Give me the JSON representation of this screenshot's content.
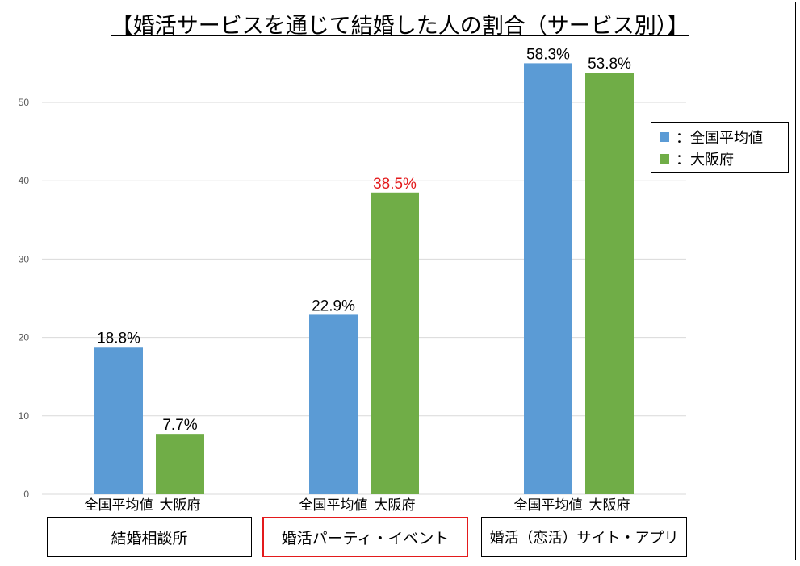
{
  "chart_data": {
    "type": "bar",
    "title": "【婚活サービスを通じて結婚した人の割合（サービス別）】",
    "categories": [
      "結婚相談所",
      "婚活パーティ・イベント",
      "婚活（恋活）サイト・アプリ"
    ],
    "bar_labels": [
      "全国平均値",
      "大阪府"
    ],
    "series": [
      {
        "name": "全国平均値",
        "values": [
          18.8,
          22.9,
          58.3
        ],
        "labels": [
          "18.8%",
          "22.9%",
          "58.3%"
        ],
        "color": "#5b9bd5"
      },
      {
        "name": "大阪府",
        "values": [
          7.7,
          38.5,
          53.8
        ],
        "labels": [
          "7.7%",
          "38.5%",
          "53.8%"
        ],
        "color": "#70ad47"
      }
    ],
    "highlight": {
      "category": "婚活パーティ・イベント",
      "series": "大阪府",
      "color": "#e31a1c"
    },
    "yticks": [
      0,
      10,
      20,
      30,
      40,
      50
    ],
    "ylim": [
      0,
      55
    ],
    "grid": true,
    "legend": {
      "placement": "right",
      "entries": [
        "：全国平均値",
        "：大阪府"
      ]
    }
  }
}
